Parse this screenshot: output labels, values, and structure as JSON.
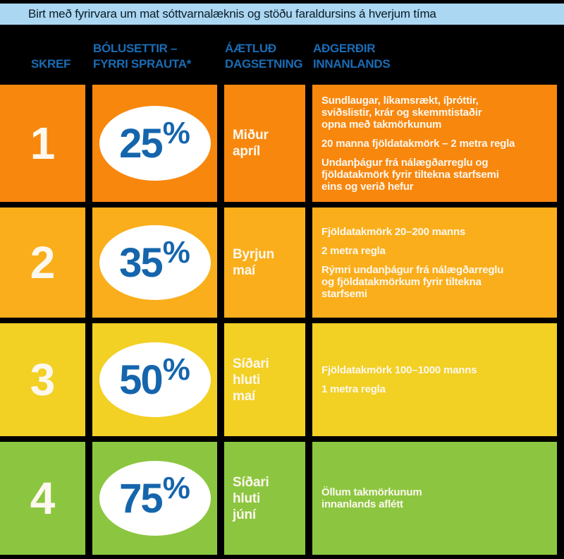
{
  "banner": {
    "text": "Birt með fyrirvara um mat sóttvarnalæknis og stöðu faraldursins á hverjum tíma"
  },
  "labels": {
    "percent_sign": "%"
  },
  "colors": {
    "background": "#000000",
    "banner_bg": "#ABD7F3",
    "banner_text": "#0B1B24",
    "header_text": "#1A6CB5",
    "percent_text": "#1565AD",
    "ellipse_bg": "#FFFFFF",
    "cell_text": "#FDF8EE"
  },
  "table": {
    "headers": [
      {
        "label": "SKREF"
      },
      {
        "label": "BÓLUSETTIR –\nFYRRI SPRAUTA*"
      },
      {
        "label": "ÁÆTLUÐ\nDAGSETNING"
      },
      {
        "label": "AÐGERÐIR\nINNANLANDS"
      }
    ],
    "rows": [
      {
        "step": "1",
        "pct": "25",
        "date": "Miður\napríl",
        "color": "#F8870E",
        "actions": [
          "Sundlaugar, líkamsrækt, íþróttir,\nsviðslistir, krár og skemmtistaðir\nopna með takmörkunum",
          "20 manna fjöldatakmörk  –  2 metra regla",
          "Undanþágur frá nálægðarreglu og\nfjöldatakmörk fyrir tiltekna starfsemi\neins og verið hefur"
        ]
      },
      {
        "step": "2",
        "pct": "35",
        "date": "Byrjun\nmaí",
        "color": "#FAAE1B",
        "actions": [
          "Fjöldatakmörk 20–200 manns",
          "2 metra regla",
          "Rýmri undanþágur frá nálægðarreglu\nog fjöldatakmörkum fyrir tiltekna\nstarfsemi"
        ]
      },
      {
        "step": "3",
        "pct": "50",
        "date": "Síðari\nhluti\nmaí",
        "color": "#F2D024",
        "actions": [
          "Fjöldatakmörk 100–1000 manns",
          "1 metra regla"
        ]
      },
      {
        "step": "4",
        "pct": "75",
        "date": "Síðari\nhluti\njúní",
        "color": "#8CC640",
        "actions": [
          "Öllum takmörkunum\ninnanlands aflétt"
        ]
      }
    ]
  },
  "chart_data": {
    "type": "table",
    "columns": [
      "SKREF",
      "BÓLUSETTIR – FYRRI SPRAUTA*",
      "ÁÆTLUÐ DAGSETNING",
      "AÐGERÐIR INNANLANDS"
    ],
    "rows": [
      [
        "1",
        "25%",
        "Miður apríl",
        "Sundlaugar, líkamsrækt, íþróttir, sviðslistir, krár og skemmtistaðir opna með takmörkunum; 20 manna fjöldatakmörk – 2 metra regla; Undanþágur frá nálægðarreglu og fjöldatakmörk fyrir tiltekna starfsemi eins og verið hefur"
      ],
      [
        "2",
        "35%",
        "Byrjun maí",
        "Fjöldatakmörk 20–200 manns; 2 metra regla; Rýmri undanþágur frá nálægðarreglu og fjöldatakmörkum fyrir tiltekna starfsemi"
      ],
      [
        "3",
        "50%",
        "Síðari hluti maí",
        "Fjöldatakmörk 100–1000 manns; 1 metra regla"
      ],
      [
        "4",
        "75%",
        "Síðari hluti júní",
        "Öllum takmörkunum innanlands aflétt"
      ]
    ],
    "percent_values": [
      25,
      35,
      50,
      75
    ],
    "disclaimer": "Birt með fyrirvara um mat sóttvarnalæknis og stöðu faraldursins á hverjum tíma"
  }
}
